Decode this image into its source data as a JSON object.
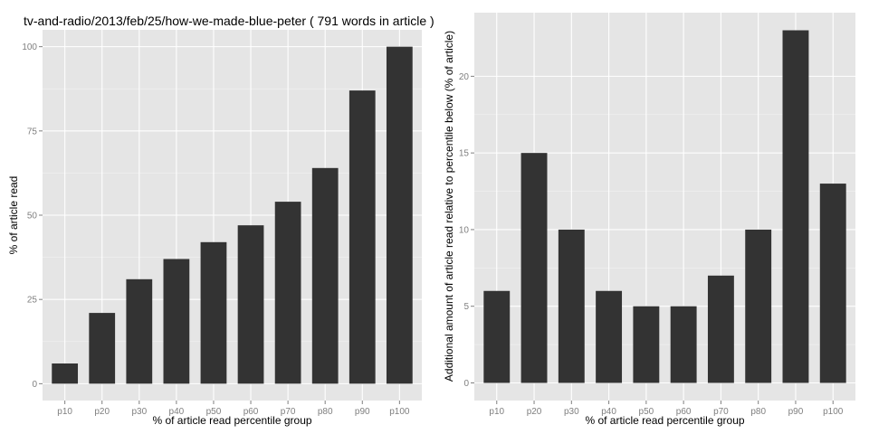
{
  "chart_data": [
    {
      "type": "bar",
      "title": "tv-and-radio/2013/feb/25/how-we-made-blue-peter ( 791 words in article )",
      "xlabel": "% of article read percentile group",
      "ylabel": "% of article read",
      "categories": [
        "p10",
        "p20",
        "p30",
        "p40",
        "p50",
        "p60",
        "p70",
        "p80",
        "p90",
        "p100"
      ],
      "values": [
        6,
        21,
        31,
        37,
        42,
        47,
        54,
        64,
        87,
        100
      ],
      "ylim": [
        -5,
        105
      ],
      "yticks": [
        0,
        25,
        50,
        75,
        100
      ],
      "grid": true,
      "colors": {
        "bar": "#333333",
        "panel": "#e5e5e5",
        "grid_major": "#ffffff",
        "grid_minor": "#f2f2f2"
      }
    },
    {
      "type": "bar",
      "title": "",
      "xlabel": "% of article read percentile group",
      "ylabel": "Additional amount of article read relative to percentile below (% of article)",
      "categories": [
        "p10",
        "p20",
        "p30",
        "p40",
        "p50",
        "p60",
        "p70",
        "p80",
        "p90",
        "p100"
      ],
      "values": [
        6,
        15,
        10,
        6,
        5,
        5,
        7,
        10,
        23,
        13
      ],
      "ylim": [
        -1.15,
        24.15
      ],
      "yticks": [
        0,
        5,
        10,
        15,
        20
      ],
      "grid": true,
      "colors": {
        "bar": "#333333",
        "panel": "#e5e5e5",
        "grid_major": "#ffffff",
        "grid_minor": "#f2f2f2"
      }
    }
  ]
}
